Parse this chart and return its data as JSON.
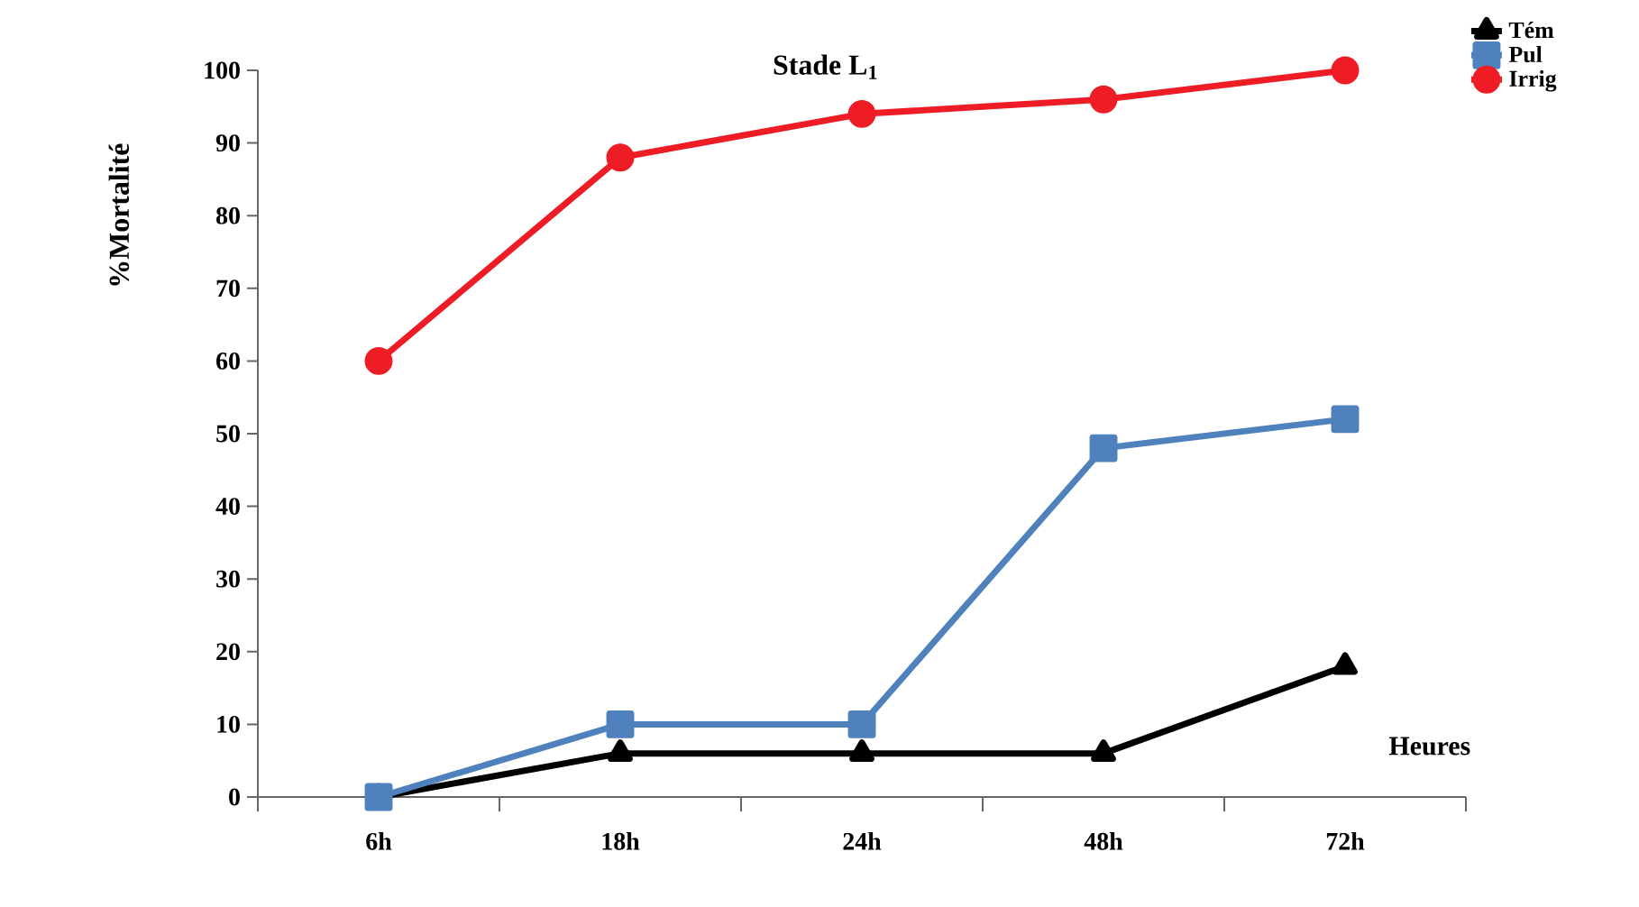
{
  "chart_data": {
    "type": "line",
    "title": "Stade L$_{1}$",
    "xlabel": "Heures",
    "ylabel": "%Mortalité",
    "categories": [
      "6h",
      "18h",
      "24h",
      "48h",
      "72h"
    ],
    "series": [
      {
        "name": "Tém",
        "color": "#000000",
        "marker": "triangle",
        "values": [
          0,
          6,
          6,
          6,
          18
        ]
      },
      {
        "name": "Pul",
        "color": "#4f81bd",
        "marker": "square",
        "values": [
          0,
          10,
          10,
          48,
          52
        ]
      },
      {
        "name": "Irrig",
        "color": "#ee1c25",
        "marker": "circle",
        "values": [
          60,
          88,
          94,
          96,
          100
        ]
      }
    ],
    "ylim": [
      0,
      100
    ],
    "yticks": [
      0,
      10,
      20,
      30,
      40,
      50,
      60,
      70,
      80,
      90,
      100
    ],
    "grid": false,
    "legend": "top right",
    "line_style": "solid"
  }
}
